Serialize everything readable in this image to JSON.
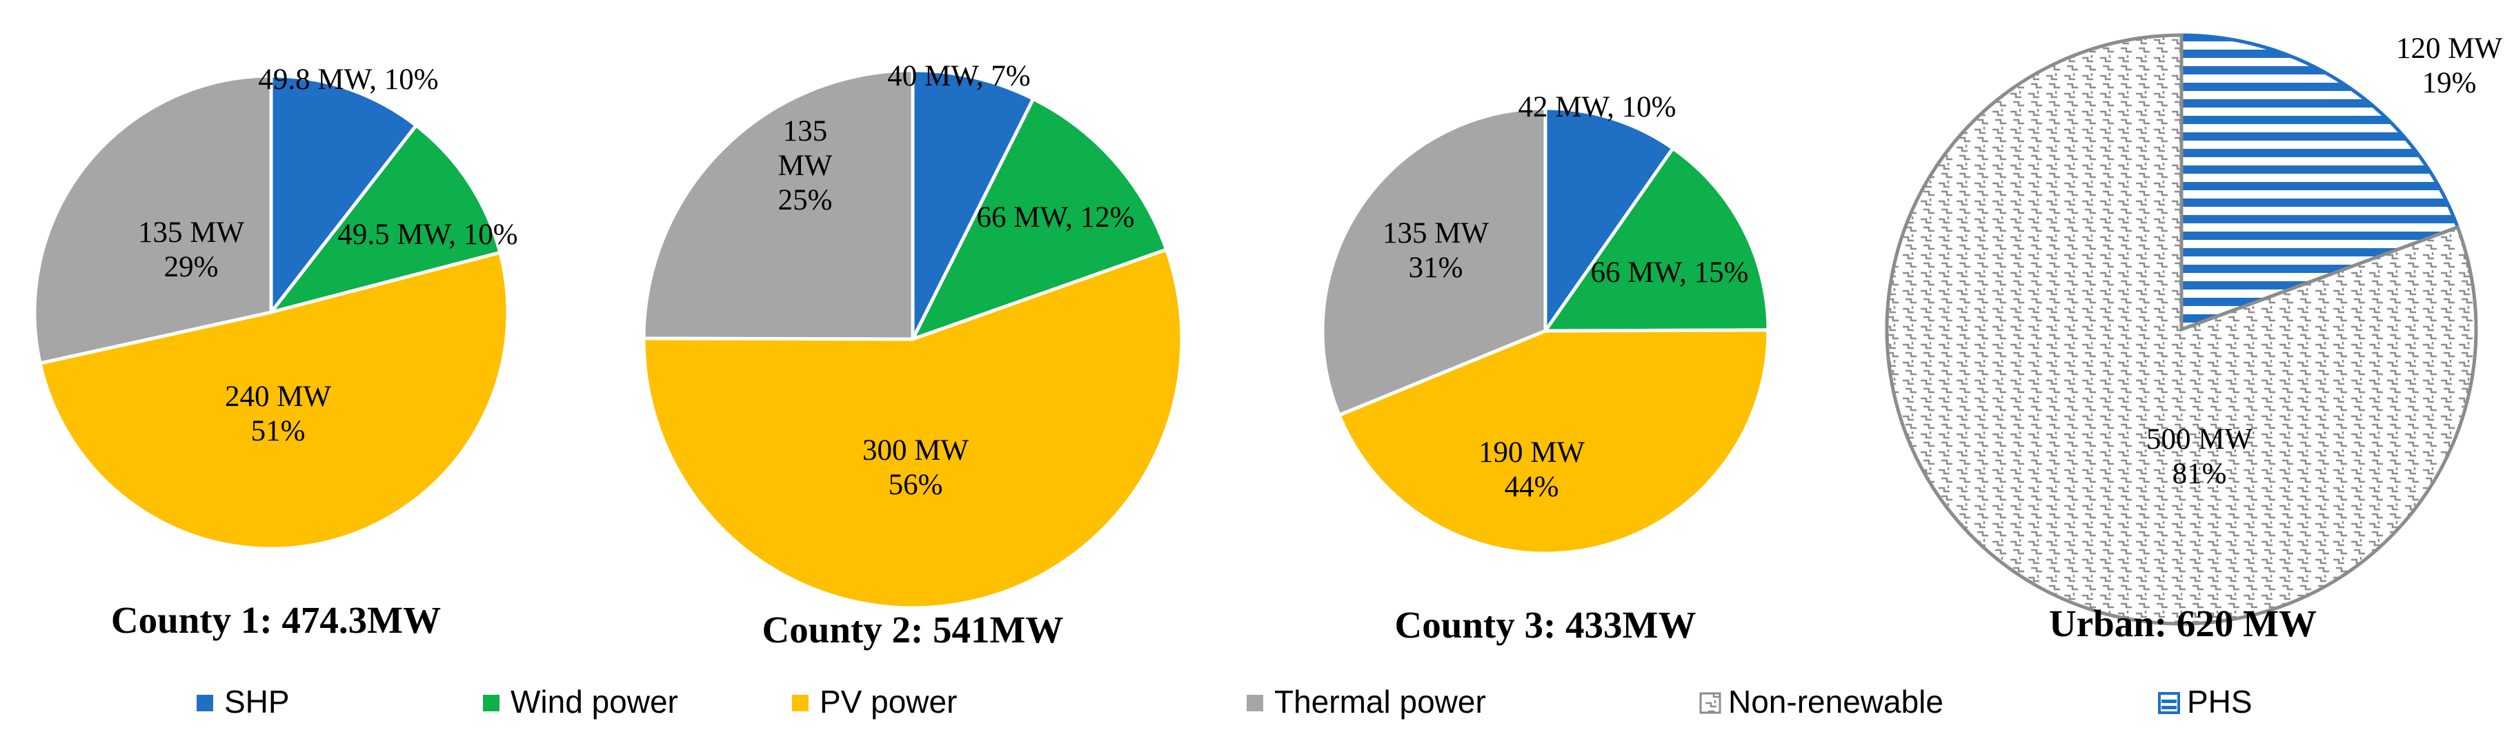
{
  "colors": {
    "SHP": "#1f6fc5",
    "Wind power": "#0db04b",
    "PV power": "#ffc000",
    "Thermal power": "#a6a6a6",
    "Non-renewable": "#ffffff",
    "PHS": "#1f6fc5"
  },
  "chart_data": [
    {
      "type": "pie",
      "title": "County  1: 474.3MW",
      "slices": [
        {
          "category": "SHP",
          "value": 49.8,
          "label_lines": [
            "49.8  MW, 10%"
          ]
        },
        {
          "category": "Wind power",
          "value": 49.5,
          "label_lines": [
            "49.5  MW, 10%"
          ]
        },
        {
          "category": "PV power",
          "value": 240,
          "label_lines": [
            "240  MW",
            "51%"
          ]
        },
        {
          "category": "Thermal power",
          "value": 135,
          "label_lines": [
            "135  MW",
            "29%"
          ]
        }
      ]
    },
    {
      "type": "pie",
      "title": "County  2: 541MW",
      "slices": [
        {
          "category": "SHP",
          "value": 40,
          "label_lines": [
            "40  MW, 7%"
          ]
        },
        {
          "category": "Wind power",
          "value": 66,
          "label_lines": [
            "66  MW, 12%"
          ]
        },
        {
          "category": "PV power",
          "value": 300,
          "label_lines": [
            "300  MW",
            "56%"
          ]
        },
        {
          "category": "Thermal power",
          "value": 135,
          "label_lines": [
            "135",
            "MW",
            "25%"
          ]
        }
      ]
    },
    {
      "type": "pie",
      "title": "County  3: 433MW",
      "slices": [
        {
          "category": "SHP",
          "value": 42,
          "label_lines": [
            "42  MW, 10%"
          ]
        },
        {
          "category": "Wind power",
          "value": 66,
          "label_lines": [
            "66  MW, 15%"
          ]
        },
        {
          "category": "PV power",
          "value": 190,
          "label_lines": [
            "190  MW",
            "44%"
          ]
        },
        {
          "category": "Thermal power",
          "value": 135,
          "label_lines": [
            "135  MW",
            "31%"
          ]
        }
      ]
    },
    {
      "type": "pie",
      "title": "Urban:  620 MW",
      "slices": [
        {
          "category": "PHS",
          "value": 120,
          "label_lines": [
            "120  MW",
            "19%"
          ]
        },
        {
          "category": "Non-renewable",
          "value": 500,
          "label_lines": [
            "500  MW",
            "81%"
          ]
        }
      ]
    }
  ],
  "legend": [
    "SHP",
    "Wind power",
    "PV power",
    "Thermal power",
    "Non-renewable",
    "PHS"
  ]
}
